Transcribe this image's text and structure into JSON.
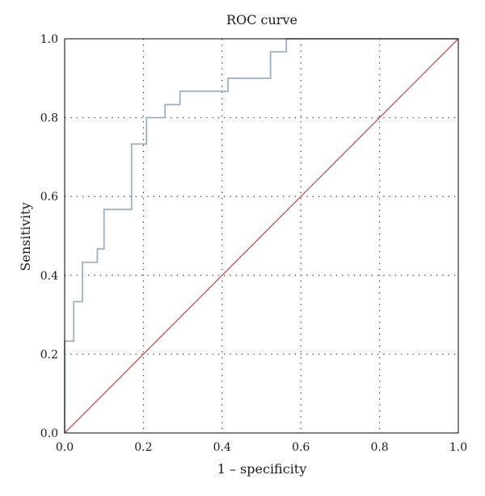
{
  "chart_data": {
    "type": "line",
    "title": "ROC curve",
    "xlabel": "1 – specificity",
    "ylabel": "Sensitivity",
    "xlim": [
      0,
      1
    ],
    "ylim": [
      0,
      1
    ],
    "xticks": [
      0.0,
      0.2,
      0.4,
      0.6,
      0.8,
      1.0
    ],
    "yticks": [
      0.0,
      0.2,
      0.4,
      0.6,
      0.8,
      1.0
    ],
    "xtick_labels": [
      "0.0",
      "0.2",
      "0.4",
      "0.6",
      "0.8",
      "1.0"
    ],
    "ytick_labels": [
      "0.0",
      "0.2",
      "0.4",
      "0.6",
      "0.8",
      "1.0"
    ],
    "grid": "dotted",
    "colors": {
      "roc": "#9fb0bf",
      "reference": "#c0505a",
      "frame": "#000000",
      "grid": "#444444"
    },
    "series": [
      {
        "x": [
          0.0,
          0.0,
          0.023,
          0.023,
          0.045,
          0.045,
          0.083,
          0.083,
          0.1,
          0.1,
          0.17,
          0.17,
          0.208,
          0.208,
          0.255,
          0.255,
          0.293,
          0.293,
          0.415,
          0.415,
          0.523,
          0.523,
          0.563,
          0.563,
          1.0
        ],
        "y": [
          0.0,
          0.233,
          0.233,
          0.333,
          0.333,
          0.433,
          0.433,
          0.467,
          0.467,
          0.567,
          0.567,
          0.733,
          0.733,
          0.8,
          0.8,
          0.833,
          0.833,
          0.867,
          0.867,
          0.9,
          0.9,
          0.967,
          0.967,
          1.0,
          1.0
        ]
      },
      {
        "x": [
          0.0,
          1.0
        ],
        "y": [
          0.0,
          1.0
        ]
      }
    ]
  }
}
